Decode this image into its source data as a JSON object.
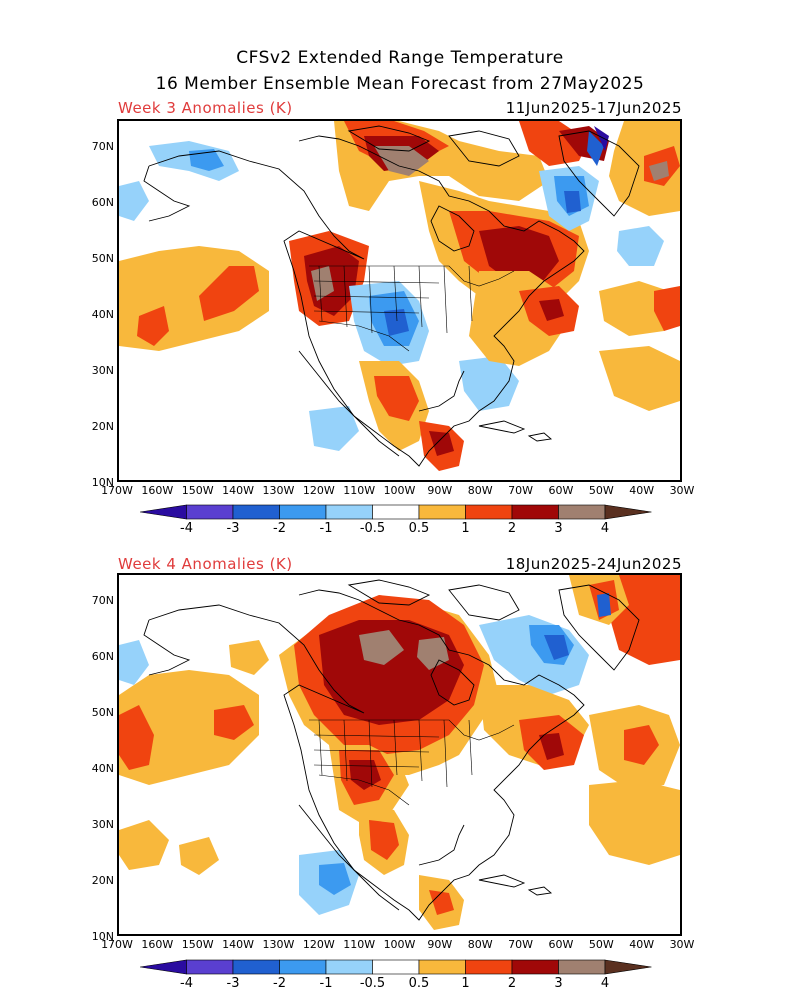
{
  "title_line1": "CFSv2 Extended Range Temperature",
  "title_line2": "16 Member Ensemble Mean Forecast from 27May2025",
  "panels": [
    {
      "label": "Week 3 Anomalies (K)",
      "dates": "11Jun2025-17Jun2025"
    },
    {
      "label": "Week 4 Anomalies (K)",
      "dates": "18Jun2025-24Jun2025"
    }
  ],
  "lat_labels": [
    "70N",
    "60N",
    "50N",
    "40N",
    "30N",
    "20N",
    "10N"
  ],
  "lon_labels": [
    "170W",
    "160W",
    "150W",
    "140W",
    "130W",
    "120W",
    "110W",
    "100W",
    "90W",
    "80W",
    "70W",
    "60W",
    "50W",
    "40W",
    "30W"
  ],
  "colorbar": {
    "labels": [
      "-4",
      "-3",
      "-2",
      "-1",
      "-0.5",
      "0.5",
      "1",
      "2",
      "3",
      "4"
    ],
    "colors": [
      "#2a0ca0",
      "#5a3fd0",
      "#2060d0",
      "#3c9af0",
      "#96d2fa",
      "#ffffff",
      "#f8b83c",
      "#f04410",
      "#a00808",
      "#a08070",
      "#5a3020"
    ]
  },
  "map_colors": {
    "warm1": "#f8b83c",
    "warm2": "#f04410",
    "warm3": "#a00808",
    "warm4": "#a08070",
    "cool1": "#96d2fa",
    "cool2": "#3c9af0",
    "cool3": "#2060d0",
    "cool4": "#2a0ca0"
  }
}
